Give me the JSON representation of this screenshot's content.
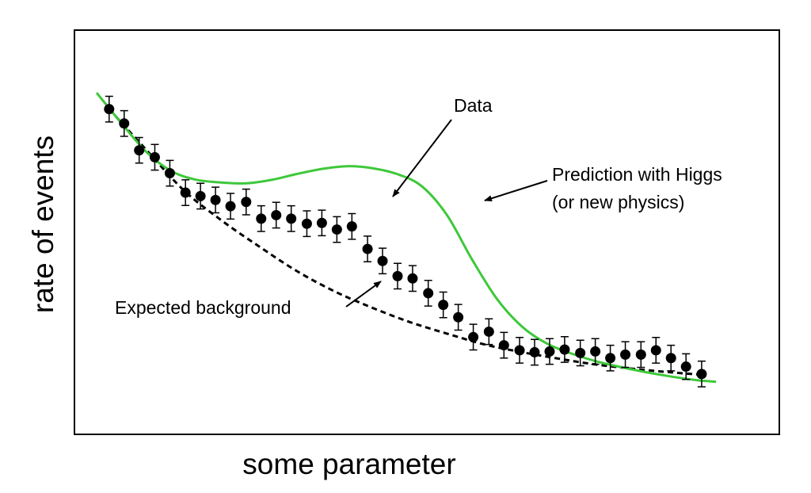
{
  "chart_data": {
    "type": "scatter",
    "title": "",
    "xlabel": "some parameter",
    "ylabel": "rate of events",
    "xlim": [
      0,
      1
    ],
    "ylim": [
      0,
      1
    ],
    "x_ticks": [],
    "y_ticks": [],
    "grid": false,
    "legend": "none",
    "colors": {
      "data": "#000000",
      "signal": "#3ec83a",
      "background": "#000000",
      "frame": "#000000"
    },
    "series": [
      {
        "name": "Data",
        "kind": "points-with-error-bars",
        "x": [
          0.02,
          0.044,
          0.068,
          0.093,
          0.117,
          0.142,
          0.166,
          0.19,
          0.214,
          0.239,
          0.263,
          0.287,
          0.311,
          0.336,
          0.36,
          0.384,
          0.408,
          0.433,
          0.457,
          0.481,
          0.505,
          0.53,
          0.554,
          0.578,
          0.602,
          0.627,
          0.651,
          0.676,
          0.7,
          0.724,
          0.748,
          0.773,
          0.797,
          0.821,
          0.845,
          0.87,
          0.894,
          0.918,
          0.942,
          0.967
        ],
        "y": [
          0.817,
          0.78,
          0.711,
          0.693,
          0.652,
          0.602,
          0.593,
          0.583,
          0.567,
          0.578,
          0.535,
          0.544,
          0.535,
          0.522,
          0.524,
          0.507,
          0.515,
          0.457,
          0.426,
          0.387,
          0.381,
          0.343,
          0.313,
          0.281,
          0.23,
          0.244,
          0.209,
          0.196,
          0.191,
          0.193,
          0.198,
          0.189,
          0.193,
          0.176,
          0.185,
          0.185,
          0.196,
          0.176,
          0.154,
          0.135
        ],
        "yerr": 0.033
      },
      {
        "name": "Prediction with Higgs (or new physics)",
        "kind": "line",
        "x": [
          0.0,
          0.04,
          0.08,
          0.12,
          0.16,
          0.2,
          0.24,
          0.28,
          0.32,
          0.36,
          0.4,
          0.44,
          0.48,
          0.52,
          0.56,
          0.6,
          0.64,
          0.68,
          0.72,
          0.76,
          0.8,
          0.84,
          0.88,
          0.92,
          0.96,
          0.99
        ],
        "y": [
          0.859,
          0.78,
          0.706,
          0.657,
          0.635,
          0.628,
          0.626,
          0.635,
          0.65,
          0.663,
          0.67,
          0.665,
          0.65,
          0.618,
          0.544,
          0.43,
          0.328,
          0.257,
          0.213,
          0.187,
          0.167,
          0.152,
          0.139,
          0.128,
          0.119,
          0.115
        ]
      },
      {
        "name": "Expected background",
        "kind": "dashed-line",
        "x": [
          0.02,
          0.08,
          0.14,
          0.2,
          0.26,
          0.32,
          0.38,
          0.44,
          0.5,
          0.56,
          0.62,
          0.68,
          0.74,
          0.8,
          0.86,
          0.92,
          0.967
        ],
        "y": [
          0.817,
          0.711,
          0.607,
          0.53,
          0.463,
          0.4,
          0.348,
          0.306,
          0.269,
          0.239,
          0.211,
          0.191,
          0.174,
          0.159,
          0.148,
          0.139,
          0.133
        ]
      }
    ],
    "annotations": [
      {
        "text": "Data",
        "points_to": "Data"
      },
      {
        "text": [
          "Prediction with Higgs",
          "(or new physics)"
        ],
        "points_to": "Prediction with Higgs (or new physics)"
      },
      {
        "text": "Expected background",
        "points_to": "Expected background"
      }
    ]
  }
}
